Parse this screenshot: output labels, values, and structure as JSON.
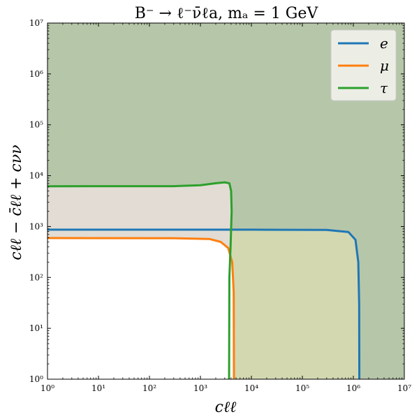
{
  "chart_data": {
    "type": "line",
    "title": "B⁻ → ℓ⁻ν̄ℓa, mₐ = 1 GeV",
    "xlabel": "cℓℓ",
    "ylabel": "cℓℓ − c̄ℓℓ + cνν",
    "x_scale": "log",
    "y_scale": "log",
    "xlim": [
      1,
      10000000
    ],
    "ylim": [
      1,
      10000000
    ],
    "x_ticks": [
      1,
      10,
      100,
      1000,
      10000,
      100000,
      1000000,
      10000000
    ],
    "x_tick_labels": [
      "10⁰",
      "10¹",
      "10²",
      "10³",
      "10⁴",
      "10⁵",
      "10⁶",
      "10⁷"
    ],
    "y_ticks": [
      1,
      10,
      100,
      1000,
      10000,
      100000,
      1000000,
      10000000
    ],
    "y_tick_labels": [
      "10⁰",
      "10¹",
      "10²",
      "10³",
      "10⁴",
      "10⁵",
      "10⁶",
      "10⁷"
    ],
    "grid": false,
    "legend_position": "top-right",
    "background_color": "#b6c6a9",
    "series": [
      {
        "name": "e",
        "color": "#1f77b4",
        "fill": "#d3d8b1",
        "points": [
          [
            1,
            870
          ],
          [
            300,
            868
          ],
          [
            10000,
            868
          ],
          [
            300000,
            860
          ],
          [
            800000,
            780
          ],
          [
            1100000,
            550
          ],
          [
            1250000,
            200
          ],
          [
            1300000,
            30
          ],
          [
            1310000,
            1
          ]
        ]
      },
      {
        "name": "μ",
        "color": "#ff7f0e",
        "fill": "#ffffff",
        "points": [
          [
            1,
            595
          ],
          [
            300,
            590
          ],
          [
            1500,
            570
          ],
          [
            2500,
            500
          ],
          [
            3500,
            380
          ],
          [
            4200,
            200
          ],
          [
            4500,
            50
          ],
          [
            4550,
            1
          ]
        ]
      },
      {
        "name": "τ",
        "color": "#2ca02c",
        "fill": "#e2dcd4",
        "points": [
          [
            1,
            6200
          ],
          [
            300,
            6220
          ],
          [
            1000,
            6500
          ],
          [
            2000,
            7100
          ],
          [
            3000,
            7400
          ],
          [
            3700,
            7100
          ],
          [
            4000,
            5000
          ],
          [
            4100,
            2000
          ],
          [
            3900,
            400
          ],
          [
            3700,
            100
          ],
          [
            3650,
            1
          ]
        ]
      }
    ]
  }
}
